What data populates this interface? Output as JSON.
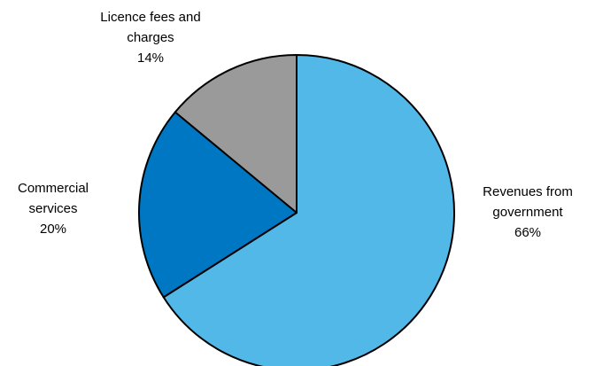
{
  "chart_data": {
    "type": "pie",
    "title": "",
    "slices": [
      {
        "label_lines": [
          "Revenues from",
          "government"
        ],
        "value": 66,
        "value_label": "66%",
        "color": "#52b8e8"
      },
      {
        "label_lines": [
          "Commercial",
          "services"
        ],
        "value": 20,
        "value_label": "20%",
        "color": "#0077c2"
      },
      {
        "label_lines": [
          "Licence fees and",
          "charges"
        ],
        "value": 14,
        "value_label": "14%",
        "color": "#9a9a9a"
      }
    ],
    "start_angle": "12 o'clock",
    "direction": "clockwise",
    "legend": "none (labels placed beside slices)"
  }
}
